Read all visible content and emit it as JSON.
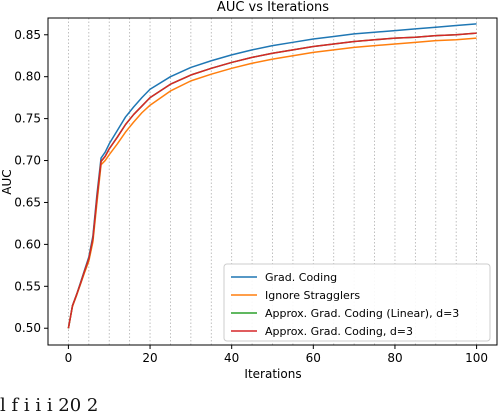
{
  "caption_fragment": "l      f i     i      i          20      2   ",
  "chart_data": {
    "type": "line",
    "title": "AUC vs Iterations",
    "xlabel": "Iterations",
    "ylabel": "AUC",
    "xlim": [
      -5,
      105
    ],
    "ylim": [
      0.48,
      0.87
    ],
    "xticks": [
      0,
      20,
      40,
      60,
      80,
      100
    ],
    "yticks": [
      0.5,
      0.55,
      0.6,
      0.65,
      0.7,
      0.75,
      0.8,
      0.85
    ],
    "x_gridlines": [
      0,
      5,
      10,
      15,
      20,
      25,
      30,
      35,
      40,
      45,
      50,
      55,
      60,
      65,
      70,
      75,
      80,
      85,
      90,
      95,
      100
    ],
    "grid": "vertical dotted",
    "legend_position": "bottom-right",
    "x": [
      0,
      1,
      2,
      3,
      4,
      5,
      6,
      7,
      8,
      9,
      10,
      12,
      14,
      16,
      18,
      20,
      25,
      30,
      35,
      40,
      45,
      50,
      55,
      60,
      65,
      70,
      75,
      80,
      85,
      90,
      95,
      100
    ],
    "series": [
      {
        "name": "Grad. Coding",
        "color": "#1f77b4",
        "values": [
          0.5,
          0.527,
          0.54,
          0.555,
          0.57,
          0.585,
          0.61,
          0.66,
          0.703,
          0.71,
          0.72,
          0.736,
          0.752,
          0.764,
          0.775,
          0.785,
          0.8,
          0.811,
          0.819,
          0.826,
          0.832,
          0.837,
          0.841,
          0.845,
          0.848,
          0.851,
          0.853,
          0.855,
          0.857,
          0.859,
          0.861,
          0.863
        ]
      },
      {
        "name": "Ignore Stragglers",
        "color": "#ff7f0e",
        "values": [
          0.5,
          0.526,
          0.539,
          0.553,
          0.567,
          0.58,
          0.603,
          0.65,
          0.695,
          0.7,
          0.707,
          0.72,
          0.734,
          0.746,
          0.757,
          0.766,
          0.783,
          0.795,
          0.803,
          0.81,
          0.816,
          0.821,
          0.825,
          0.829,
          0.832,
          0.835,
          0.837,
          0.839,
          0.841,
          0.843,
          0.844,
          0.846
        ]
      },
      {
        "name": "Approx. Grad. Coding (Linear), d=3",
        "color": "#2ca02c",
        "values": [
          0.5,
          0.527,
          0.54,
          0.554,
          0.569,
          0.583,
          0.607,
          0.656,
          0.699,
          0.705,
          0.714,
          0.728,
          0.743,
          0.755,
          0.765,
          0.775,
          0.791,
          0.802,
          0.81,
          0.817,
          0.823,
          0.828,
          0.832,
          0.836,
          0.839,
          0.842,
          0.844,
          0.846,
          0.847,
          0.849,
          0.85,
          0.852
        ]
      },
      {
        "name": "Approx. Grad. Coding, d=3",
        "color": "#d62728",
        "values": [
          0.5,
          0.527,
          0.54,
          0.554,
          0.569,
          0.583,
          0.607,
          0.656,
          0.699,
          0.705,
          0.714,
          0.728,
          0.743,
          0.755,
          0.765,
          0.775,
          0.791,
          0.802,
          0.81,
          0.817,
          0.823,
          0.828,
          0.832,
          0.836,
          0.839,
          0.842,
          0.844,
          0.846,
          0.847,
          0.849,
          0.85,
          0.852
        ]
      }
    ]
  }
}
